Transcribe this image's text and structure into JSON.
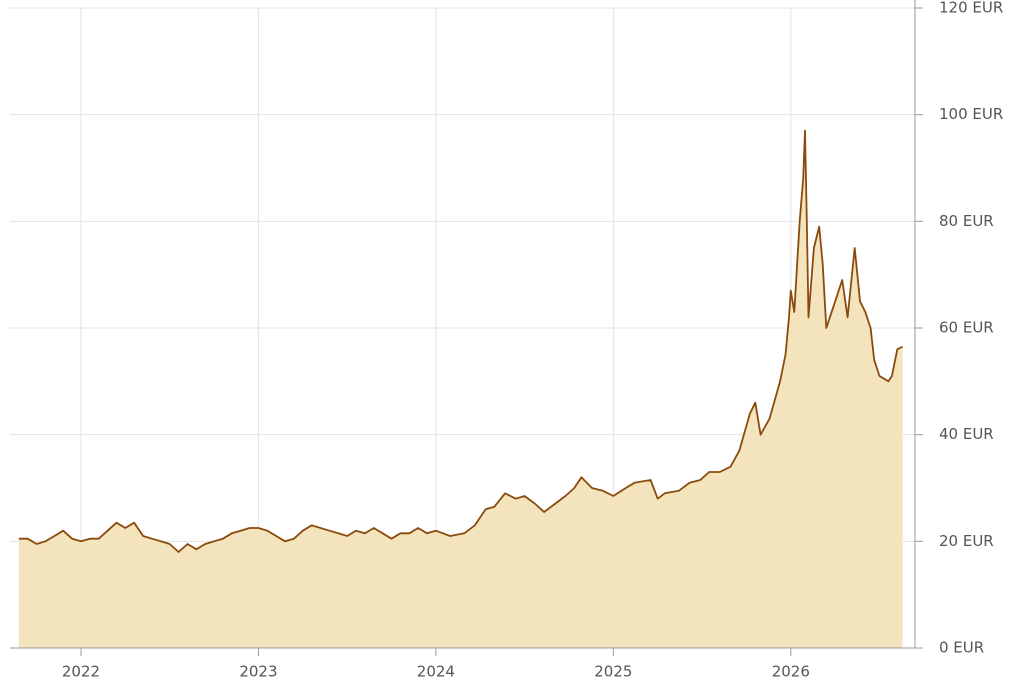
{
  "chart_data": {
    "type": "area",
    "x": [
      2021.65,
      2021.7,
      2021.75,
      2021.8,
      2021.85,
      2021.9,
      2021.95,
      2022.0,
      2022.05,
      2022.1,
      2022.15,
      2022.2,
      2022.25,
      2022.3,
      2022.35,
      2022.4,
      2022.45,
      2022.5,
      2022.55,
      2022.6,
      2022.65,
      2022.7,
      2022.75,
      2022.8,
      2022.85,
      2022.9,
      2022.95,
      2023.0,
      2023.05,
      2023.1,
      2023.15,
      2023.2,
      2023.25,
      2023.3,
      2023.35,
      2023.4,
      2023.45,
      2023.5,
      2023.55,
      2023.6,
      2023.65,
      2023.7,
      2023.75,
      2023.8,
      2023.85,
      2023.9,
      2023.95,
      2024.0,
      2024.08,
      2024.16,
      2024.22,
      2024.28,
      2024.33,
      2024.39,
      2024.45,
      2024.5,
      2024.56,
      2024.61,
      2024.67,
      2024.73,
      2024.78,
      2024.82,
      2024.88,
      2024.94,
      2025.0,
      2025.07,
      2025.12,
      2025.21,
      2025.25,
      2025.29,
      2025.37,
      2025.43,
      2025.49,
      2025.54,
      2025.6,
      2025.66,
      2025.71,
      2025.77,
      2025.8,
      2025.83,
      2025.88,
      2025.94,
      2025.97,
      2025.99,
      2026.0,
      2026.02,
      2026.05,
      2026.07,
      2026.08,
      2026.09,
      2026.1,
      2026.13,
      2026.16,
      2026.18,
      2026.2,
      2026.24,
      2026.29,
      2026.32,
      2026.36,
      2026.39,
      2026.42,
      2026.45,
      2026.47,
      2026.5,
      2026.55,
      2026.57,
      2026.6,
      2026.63
    ],
    "values": [
      20.5,
      20.5,
      19.5,
      20,
      21,
      22,
      20.5,
      20,
      20.5,
      20.5,
      22,
      23.5,
      22.5,
      23.5,
      21,
      20.5,
      20,
      19.5,
      18,
      19.5,
      18.5,
      19.5,
      20,
      20.5,
      21.5,
      22,
      22.5,
      22.5,
      22,
      21,
      20,
      20.5,
      22,
      23,
      22.5,
      22,
      21.5,
      21,
      22,
      21.5,
      22.5,
      21.5,
      20.5,
      21.5,
      21.5,
      22.5,
      21.5,
      22,
      21,
      21.5,
      23,
      26,
      26.5,
      29,
      28,
      28.5,
      27,
      25.5,
      27,
      28.5,
      30,
      32,
      30,
      29.5,
      28.5,
      30,
      31,
      31.5,
      28,
      29,
      29.5,
      31,
      31.5,
      33,
      33,
      34,
      37,
      44,
      46,
      40,
      43,
      50,
      55,
      62,
      67,
      63,
      80,
      88,
      97,
      80,
      62,
      75,
      79,
      72,
      60,
      64,
      69,
      62,
      75,
      65,
      63,
      60,
      54,
      51,
      50,
      51,
      56,
      56.5
    ],
    "color": "#8b4a0c",
    "fill": "#f4e4bd",
    "xlim": [
      2021.6,
      2026.7
    ],
    "xticks": [
      2022,
      2023,
      2024,
      2025,
      2026
    ],
    "ylim": [
      0,
      120
    ],
    "yticks": [
      {
        "value": 0,
        "label": "0 EUR"
      },
      {
        "value": 20,
        "label": "20 EUR"
      },
      {
        "value": 40,
        "label": "40 EUR"
      },
      {
        "value": 60,
        "label": "60 EUR"
      },
      {
        "value": 80,
        "label": "80 EUR"
      },
      {
        "value": 100,
        "label": "100 EUR"
      },
      {
        "value": 120,
        "label": "120 EUR"
      }
    ],
    "grid": true
  }
}
